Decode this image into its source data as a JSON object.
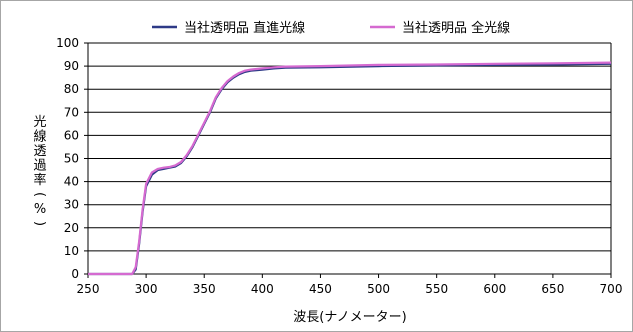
{
  "chart_data": {
    "type": "line",
    "xlabel": "波長(ナノメーター)",
    "ylabel": "光線透過率(%)",
    "xlim": [
      250,
      700
    ],
    "ylim": [
      0,
      100
    ],
    "xticks": [
      250,
      300,
      350,
      400,
      450,
      500,
      550,
      600,
      650,
      700
    ],
    "yticks": [
      0,
      10,
      20,
      30,
      40,
      50,
      60,
      70,
      80,
      90,
      100
    ],
    "grid": "horizontal",
    "legend_position": "top",
    "series": [
      {
        "name": "当社透明品 直進光線",
        "color": "#2e3a87",
        "x": [
          250,
          288,
          291,
          294,
          297,
          300,
          305,
          310,
          315,
          320,
          325,
          330,
          335,
          340,
          345,
          350,
          355,
          360,
          365,
          370,
          375,
          380,
          385,
          390,
          400,
          410,
          420,
          450,
          500,
          550,
          600,
          650,
          700
        ],
        "y": [
          0,
          0,
          2,
          13,
          27,
          38,
          43,
          45,
          45.5,
          46,
          46.5,
          48,
          51,
          55,
          60,
          65,
          70,
          76,
          80,
          83,
          85,
          86.5,
          87.5,
          88,
          88.5,
          89,
          89.3,
          89.5,
          90,
          90.3,
          90.5,
          90.7,
          91
        ]
      },
      {
        "name": "当社透明品 全光線",
        "color": "#d56ad0",
        "x": [
          250,
          288,
          291,
          294,
          297,
          300,
          305,
          310,
          315,
          320,
          325,
          330,
          335,
          340,
          345,
          350,
          355,
          360,
          365,
          370,
          375,
          380,
          385,
          390,
          400,
          410,
          420,
          450,
          500,
          550,
          600,
          650,
          700
        ],
        "y": [
          0,
          0,
          3,
          14,
          28,
          39,
          44,
          45.5,
          46,
          46.3,
          47,
          48.5,
          51.5,
          55.5,
          60.5,
          65.5,
          70.5,
          76.5,
          80.5,
          83.5,
          85.5,
          87,
          88,
          88.5,
          89,
          89.5,
          89.8,
          90,
          90.5,
          90.7,
          91,
          91.2,
          91.5
        ]
      }
    ]
  }
}
